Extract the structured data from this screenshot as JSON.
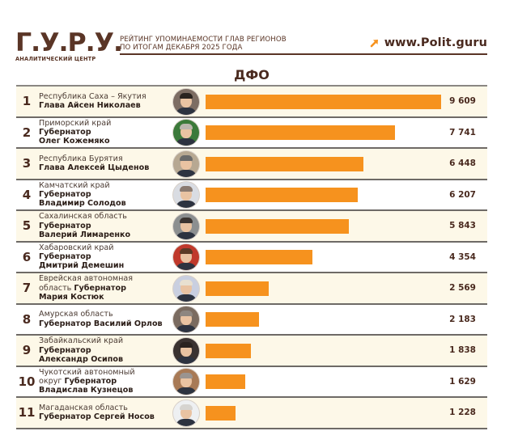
{
  "header": {
    "logo_main": "Г.У.Р.У.",
    "logo_sub": "АНАЛИТИЧЕСКИЙ ЦЕНТР",
    "title_line1": "РЕЙТИНГ УПОМИНАЕМОСТИ ГЛАВ РЕГИОНОВ",
    "title_line2": "ПО ИТОГАМ ДЕКАБРЯ 2025 ГОДА",
    "site": "www.Polit.guru",
    "site_icon": "arrow-up-right-icon"
  },
  "region_title": "ДФО",
  "colors": {
    "bar": "#f6921e",
    "brand_brown": "#5a3526",
    "row_alt_bg": "#fdf8e8",
    "rule": "#6e6a66"
  },
  "rows": [
    {
      "rank": "1",
      "region": "Республика Саха – Якутия",
      "title_name": "Глава Айсен Николаев",
      "title": "",
      "person": "",
      "value": "9 609",
      "num": 9609,
      "hair": "#2a2420",
      "avatar_bg": "#7d6d63"
    },
    {
      "rank": "2",
      "region": "Приморский край",
      "title": "Губернатор",
      "person": "Олег Кожемяко",
      "value": "7 741",
      "num": 7741,
      "hair": "#bcb6ae",
      "avatar_bg": "#3c7a3a"
    },
    {
      "rank": "3",
      "region": "Республика Бурятия",
      "title_name": "Глава Алексей Цыденов",
      "title": "",
      "person": "",
      "value": "6 448",
      "num": 6448,
      "hair": "#6a6a6a",
      "avatar_bg": "#b7a892"
    },
    {
      "rank": "4",
      "region": "Камчатский край",
      "title": "Губернатор",
      "person": "Владимир Солодов",
      "value": "6 207",
      "num": 6207,
      "hair": "#8a7a70",
      "avatar_bg": "#d9dce2"
    },
    {
      "rank": "5",
      "region": "Сахалинская область",
      "title": "Губернатор",
      "person": "Валерий Лимаренко",
      "value": "5 843",
      "num": 5843,
      "hair": "#3b3431",
      "avatar_bg": "#8c8f90"
    },
    {
      "rank": "6",
      "region": "Хабаровский край",
      "title": "Губернатор",
      "person": "Дмитрий Демешин",
      "value": "4 354",
      "num": 4354,
      "hair": "#5b3a26",
      "avatar_bg": "#c0392b"
    },
    {
      "rank": "7",
      "region_inline": "Еврейская автономная",
      "region_tail": "область",
      "title": "Губернатор",
      "person": "Мария Костюк",
      "value": "2 569",
      "num": 2569,
      "hair": "#e8e0d0",
      "avatar_bg": "#c9cfe0"
    },
    {
      "rank": "8",
      "region": "Амурская область",
      "title_name": "Губернатор Василий Орлов",
      "title": "",
      "person": "",
      "value": "2 183",
      "num": 2183,
      "hair": "#8d8680",
      "avatar_bg": "#7a6b60"
    },
    {
      "rank": "9",
      "region": "Забайкальский край",
      "title": "Губернатор",
      "person": "Александр Осипов",
      "value": "1 838",
      "num": 1838,
      "hair": "#2a2320",
      "avatar_bg": "#3a3230"
    },
    {
      "rank": "10",
      "region_inline": "Чукотский автономный",
      "region_tail": "округ",
      "title": "Губернатор",
      "person": "Владислав Кузнецов",
      "value": "1 629",
      "num": 1629,
      "hair": "#9a9490",
      "avatar_bg": "#a87a56"
    },
    {
      "rank": "11",
      "region": "Магаданская область",
      "title_name": "Губернатор Сергей Носов",
      "title": "",
      "person": "",
      "value": "1 228",
      "num": 1228,
      "hair": "#d6d4d0",
      "avatar_bg": "#eef0f2"
    }
  ],
  "chart_data": {
    "type": "bar",
    "orientation": "horizontal",
    "title": "Рейтинг упоминаемости глав регионов по итогам декабря 2025 года — ДФО",
    "categories": [
      "Республика Саха – Якутия (Айсен Николаев)",
      "Приморский край (Олег Кожемяко)",
      "Республика Бурятия (Алексей Цыденов)",
      "Камчатский край (Владимир Солодов)",
      "Сахалинская область (Валерий Лимаренко)",
      "Хабаровский край (Дмитрий Демешин)",
      "Еврейская автономная область (Мария Костюк)",
      "Амурская область (Василий Орлов)",
      "Забайкальский край (Александр Осипов)",
      "Чукотский автономный округ (Владислав Кузнецов)",
      "Магаданская область (Сергей Носов)"
    ],
    "values": [
      9609,
      7741,
      6448,
      6207,
      5843,
      4354,
      2569,
      2183,
      1838,
      1629,
      1228
    ],
    "xlabel": "",
    "ylabel": "",
    "grid": false,
    "legend": "none",
    "data_labels": true
  }
}
